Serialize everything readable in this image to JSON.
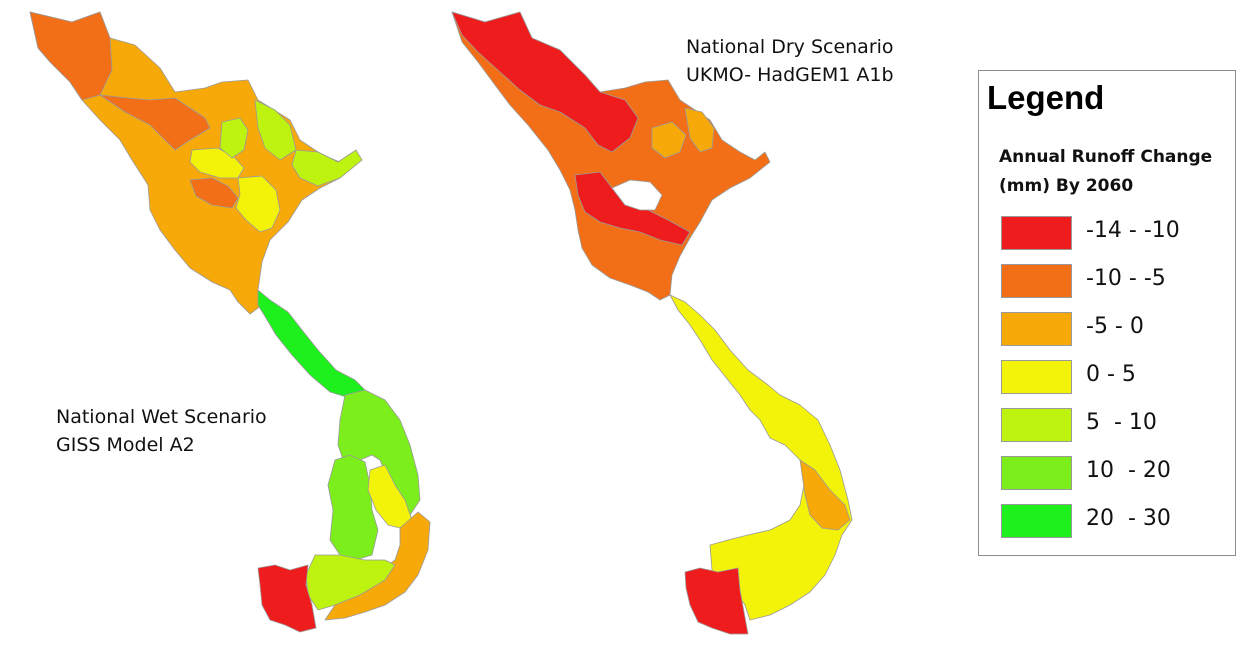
{
  "maps": {
    "wet": {
      "title_line1": "National Wet Scenario",
      "title_line2": "GISS Model A2"
    },
    "dry": {
      "title_line1": "National Dry Scenario",
      "title_line2": "UKMO- HadGEM1 A1b"
    }
  },
  "legend": {
    "title": "Legend",
    "subtitle": "Annual Runoff Change (mm) By 2060",
    "items": [
      {
        "label": "-14 - -10",
        "color": "#ee1c1c"
      },
      {
        "label": "-10 - -5",
        "color": "#f36f17"
      },
      {
        "label": "-5 - 0",
        "color": "#f7a90a"
      },
      {
        "label": "0 - 5",
        "color": "#f3f30a"
      },
      {
        "label": "5  - 10",
        "color": "#bef20f"
      },
      {
        "label": "10  - 20",
        "color": "#7cee1c"
      },
      {
        "label": "20  - 30",
        "color": "#1ef01e"
      }
    ]
  },
  "colors": {
    "c_m14_m10": "#ee1c1c",
    "c_m10_m5": "#f36f17",
    "c_m5_0": "#f7a90a",
    "c_0_5": "#f3f30a",
    "c_5_10": "#bef20f",
    "c_10_20": "#7cee1c",
    "c_20_30": "#1ef01e",
    "border": "#9a9a9a"
  }
}
